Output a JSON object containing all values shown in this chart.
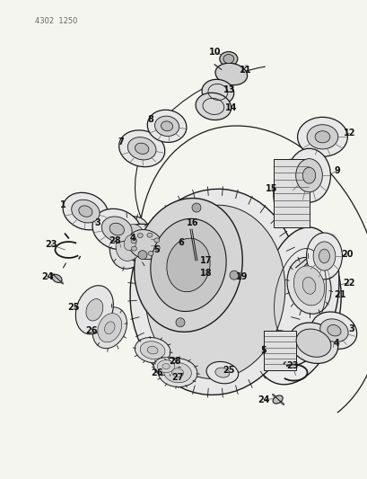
{
  "watermark": "4302  1250",
  "bg_color": "#f5f5f0",
  "fig_width": 4.1,
  "fig_height": 5.33,
  "dpi": 100,
  "lc": "#1a1a1a",
  "label_fontsize": 7.0,
  "label_color": "#111111"
}
